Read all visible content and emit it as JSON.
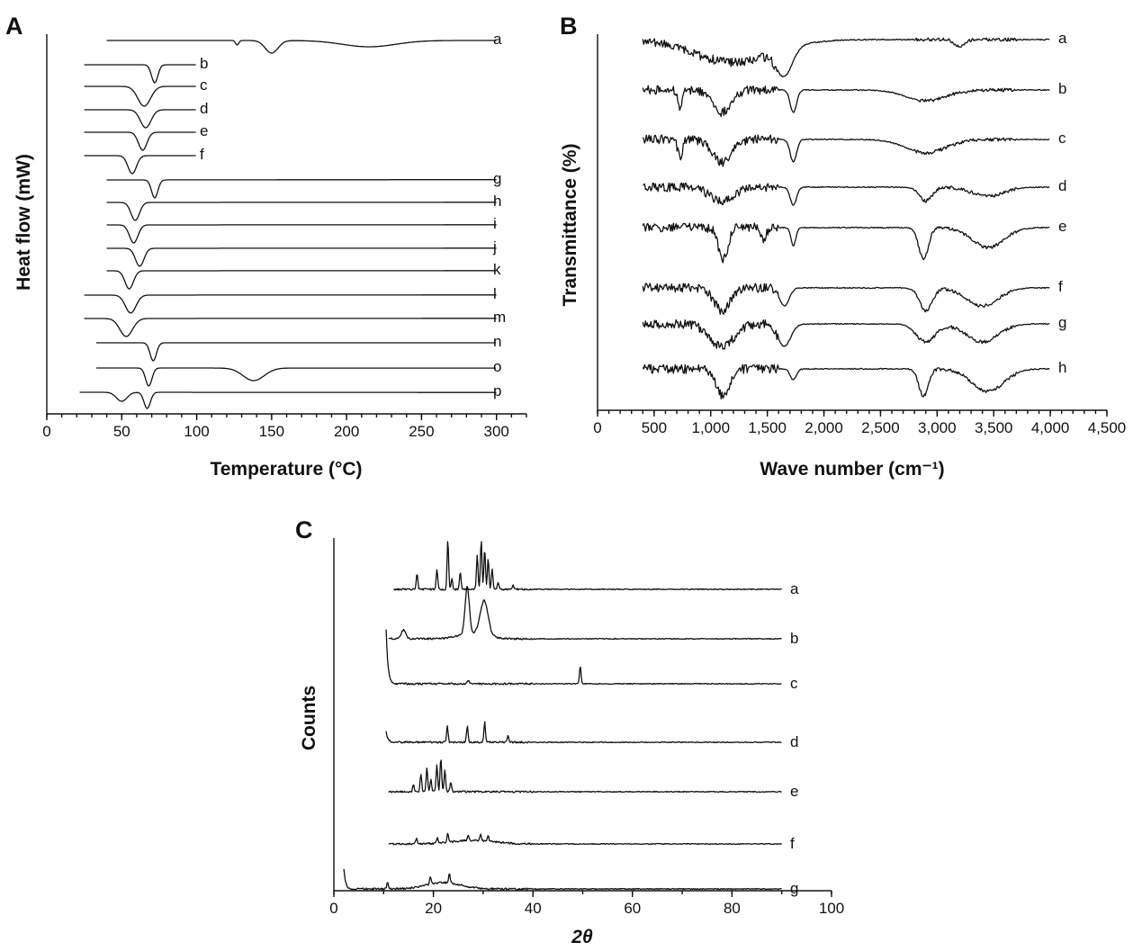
{
  "chart_data": [
    {
      "panel": "A",
      "type": "line",
      "xlabel": "Temperature (°C)",
      "ylabel": "Heat flow (mW)",
      "xlim": [
        0,
        320
      ],
      "xticks": [
        0,
        50,
        100,
        150,
        200,
        250,
        300
      ],
      "grid": false,
      "series": [
        {
          "name": "a",
          "range": [
            40,
            300
          ],
          "baseline": 0,
          "features": [
            {
              "x": 127,
              "w": 1.5,
              "d": 5
            },
            {
              "x": 150,
              "w": 6,
              "d": 14
            },
            {
              "x": 215,
              "w": 25,
              "d": 7
            }
          ]
        },
        {
          "name": "b",
          "range": [
            25,
            100
          ],
          "baseline": 0,
          "features": [
            {
              "x": 72,
              "w": 3,
              "d": 20
            }
          ]
        },
        {
          "name": "c",
          "range": [
            25,
            100
          ],
          "baseline": 0,
          "features": [
            {
              "x": 65,
              "w": 6,
              "d": 22
            }
          ]
        },
        {
          "name": "d",
          "range": [
            25,
            100
          ],
          "baseline": 0,
          "features": [
            {
              "x": 66,
              "w": 5,
              "d": 20
            }
          ]
        },
        {
          "name": "e",
          "range": [
            25,
            100
          ],
          "baseline": 0,
          "features": [
            {
              "x": 64,
              "w": 4,
              "d": 20
            }
          ]
        },
        {
          "name": "f",
          "range": [
            25,
            100
          ],
          "baseline": 0,
          "features": [
            {
              "x": 57,
              "w": 4,
              "d": 20
            }
          ]
        },
        {
          "name": "g",
          "range": [
            40,
            300
          ],
          "baseline": 0,
          "features": [
            {
              "x": 72,
              "w": 3,
              "d": 20
            }
          ]
        },
        {
          "name": "h",
          "range": [
            40,
            300
          ],
          "baseline": 0,
          "features": [
            {
              "x": 59,
              "w": 4,
              "d": 20
            }
          ]
        },
        {
          "name": "i",
          "range": [
            40,
            300
          ],
          "baseline": 0,
          "features": [
            {
              "x": 58,
              "w": 4,
              "d": 20
            }
          ]
        },
        {
          "name": "j",
          "range": [
            40,
            300
          ],
          "baseline": 0,
          "features": [
            {
              "x": 62,
              "w": 4,
              "d": 20
            }
          ]
        },
        {
          "name": "k",
          "range": [
            40,
            300
          ],
          "baseline": 0,
          "features": [
            {
              "x": 55,
              "w": 4,
              "d": 20
            }
          ]
        },
        {
          "name": "l",
          "range": [
            25,
            300
          ],
          "baseline": 0,
          "features": [
            {
              "x": 56,
              "w": 5,
              "d": 20
            }
          ]
        },
        {
          "name": "m",
          "range": [
            25,
            300
          ],
          "baseline": 0,
          "features": [
            {
              "x": 53,
              "w": 6,
              "d": 20
            }
          ]
        },
        {
          "name": "n",
          "range": [
            33,
            300
          ],
          "baseline": 0,
          "features": [
            {
              "x": 71,
              "w": 3,
              "d": 20
            }
          ]
        },
        {
          "name": "o",
          "range": [
            33,
            300
          ],
          "baseline": 0,
          "features": [
            {
              "x": 68,
              "w": 3,
              "d": 20
            },
            {
              "x": 138,
              "w": 10,
              "d": 14
            }
          ]
        },
        {
          "name": "p",
          "range": [
            22,
            300
          ],
          "baseline": 0,
          "features": [
            {
              "x": 50,
              "w": 5,
              "d": 10
            },
            {
              "x": 67,
              "w": 3,
              "d": 18
            }
          ]
        }
      ]
    },
    {
      "panel": "B",
      "type": "line",
      "xlabel": "Wave number (cm⁻¹)",
      "ylabel": "Transmittance (%)",
      "xlim": [
        0,
        4500
      ],
      "xticks": [
        0,
        500,
        1000,
        1500,
        2000,
        2500,
        3000,
        3500,
        4000,
        4500
      ],
      "xticklabels": [
        "0",
        "500",
        "1,000",
        "1,500",
        "2,000",
        "2,500",
        "3,000",
        "3,500",
        "4,000",
        "4,500"
      ],
      "grid": false,
      "series": [
        {
          "name": "a",
          "range": [
            400,
            4000
          ],
          "bands": [
            {
              "x": 1200,
              "w": 500,
              "d": 25
            },
            {
              "x": 1650,
              "w": 100,
              "d": 30
            },
            {
              "x": 3200,
              "w": 60,
              "d": 8
            }
          ]
        },
        {
          "name": "b",
          "range": [
            400,
            4000
          ],
          "bands": [
            {
              "x": 730,
              "w": 30,
              "d": 20
            },
            {
              "x": 1100,
              "w": 120,
              "d": 25
            },
            {
              "x": 1730,
              "w": 40,
              "d": 25
            },
            {
              "x": 2900,
              "w": 250,
              "d": 12
            }
          ]
        },
        {
          "name": "c",
          "range": [
            400,
            4000
          ],
          "bands": [
            {
              "x": 730,
              "w": 30,
              "d": 20
            },
            {
              "x": 1100,
              "w": 120,
              "d": 25
            },
            {
              "x": 1730,
              "w": 40,
              "d": 25
            },
            {
              "x": 2900,
              "w": 250,
              "d": 15
            }
          ]
        },
        {
          "name": "d",
          "range": [
            400,
            4000
          ],
          "bands": [
            {
              "x": 1100,
              "w": 150,
              "d": 15
            },
            {
              "x": 1730,
              "w": 40,
              "d": 20
            },
            {
              "x": 2900,
              "w": 80,
              "d": 15
            },
            {
              "x": 3450,
              "w": 200,
              "d": 10
            }
          ]
        },
        {
          "name": "e",
          "range": [
            400,
            4000
          ],
          "bands": [
            {
              "x": 1110,
              "w": 60,
              "d": 35
            },
            {
              "x": 1470,
              "w": 30,
              "d": 15
            },
            {
              "x": 1730,
              "w": 30,
              "d": 20
            },
            {
              "x": 2880,
              "w": 60,
              "d": 35
            },
            {
              "x": 3450,
              "w": 200,
              "d": 22
            }
          ]
        },
        {
          "name": "f",
          "range": [
            400,
            4000
          ],
          "bands": [
            {
              "x": 1100,
              "w": 100,
              "d": 25
            },
            {
              "x": 1650,
              "w": 60,
              "d": 20
            },
            {
              "x": 2900,
              "w": 80,
              "d": 25
            },
            {
              "x": 3400,
              "w": 200,
              "d": 20
            }
          ]
        },
        {
          "name": "g",
          "range": [
            400,
            4000
          ],
          "bands": [
            {
              "x": 1100,
              "w": 150,
              "d": 25
            },
            {
              "x": 1650,
              "w": 80,
              "d": 25
            },
            {
              "x": 2900,
              "w": 120,
              "d": 20
            },
            {
              "x": 3400,
              "w": 200,
              "d": 20
            }
          ]
        },
        {
          "name": "h",
          "range": [
            400,
            4000
          ],
          "bands": [
            {
              "x": 1110,
              "w": 80,
              "d": 30
            },
            {
              "x": 1730,
              "w": 40,
              "d": 12
            },
            {
              "x": 2880,
              "w": 60,
              "d": 30
            },
            {
              "x": 3450,
              "w": 200,
              "d": 25
            }
          ]
        }
      ]
    },
    {
      "panel": "C",
      "type": "line",
      "xlabel": "2θ",
      "ylabel": "Counts",
      "xlim": [
        0,
        100
      ],
      "xticks": [
        0,
        20,
        40,
        60,
        80,
        100
      ],
      "grid": false,
      "series": [
        {
          "name": "a",
          "range": [
            12,
            90
          ],
          "peaks": [
            {
              "x": 16.7,
              "h": 18
            },
            {
              "x": 20.7,
              "h": 22
            },
            {
              "x": 22.9,
              "h": 55
            },
            {
              "x": 23.7,
              "h": 12
            },
            {
              "x": 25.4,
              "h": 20
            },
            {
              "x": 28.8,
              "h": 38
            },
            {
              "x": 29.6,
              "h": 55
            },
            {
              "x": 30.3,
              "h": 45
            },
            {
              "x": 31.0,
              "h": 35
            },
            {
              "x": 31.8,
              "h": 22
            },
            {
              "x": 33.0,
              "h": 8
            },
            {
              "x": 36.0,
              "h": 5
            }
          ]
        },
        {
          "name": "b",
          "range": [
            11,
            90
          ],
          "peaks": [
            {
              "x": 14.0,
              "h": 10,
              "w": 0.6
            },
            {
              "x": 26.8,
              "h": 52,
              "w": 0.6
            },
            {
              "x": 30.2,
              "h": 38,
              "w": 1.1
            }
          ],
          "hump": {
            "x": 28,
            "w": 4,
            "h": 6
          }
        },
        {
          "name": "c",
          "range": [
            10.5,
            90
          ],
          "start_spike": 60,
          "peaks": [
            {
              "x": 27.0,
              "h": 4
            },
            {
              "x": 49.5,
              "h": 20
            }
          ]
        },
        {
          "name": "d",
          "range": [
            10.5,
            90
          ],
          "start_spike": 12,
          "peaks": [
            {
              "x": 22.8,
              "h": 18
            },
            {
              "x": 26.8,
              "h": 18
            },
            {
              "x": 30.3,
              "h": 22
            },
            {
              "x": 35.0,
              "h": 8
            }
          ]
        },
        {
          "name": "e",
          "range": [
            11,
            90
          ],
          "peaks": [
            {
              "x": 16.0,
              "h": 8
            },
            {
              "x": 17.5,
              "h": 20
            },
            {
              "x": 18.7,
              "h": 26
            },
            {
              "x": 19.5,
              "h": 14
            },
            {
              "x": 20.7,
              "h": 30
            },
            {
              "x": 21.5,
              "h": 38
            },
            {
              "x": 22.3,
              "h": 24
            },
            {
              "x": 23.5,
              "h": 10
            }
          ]
        },
        {
          "name": "f",
          "range": [
            11,
            90
          ],
          "peaks": [
            {
              "x": 16.6,
              "h": 6
            },
            {
              "x": 20.8,
              "h": 6
            },
            {
              "x": 22.9,
              "h": 10
            },
            {
              "x": 27.0,
              "h": 6
            },
            {
              "x": 29.5,
              "h": 8
            },
            {
              "x": 31.0,
              "h": 6
            }
          ],
          "hump": {
            "x": 28,
            "w": 6,
            "h": 4
          }
        },
        {
          "name": "g",
          "range": [
            2,
            90
          ],
          "start_spike": 22,
          "peaks": [
            {
              "x": 10.8,
              "h": 8
            },
            {
              "x": 19.4,
              "h": 8
            },
            {
              "x": 23.2,
              "h": 10
            }
          ],
          "hump": {
            "x": 22,
            "w": 5,
            "h": 7
          }
        }
      ]
    }
  ]
}
